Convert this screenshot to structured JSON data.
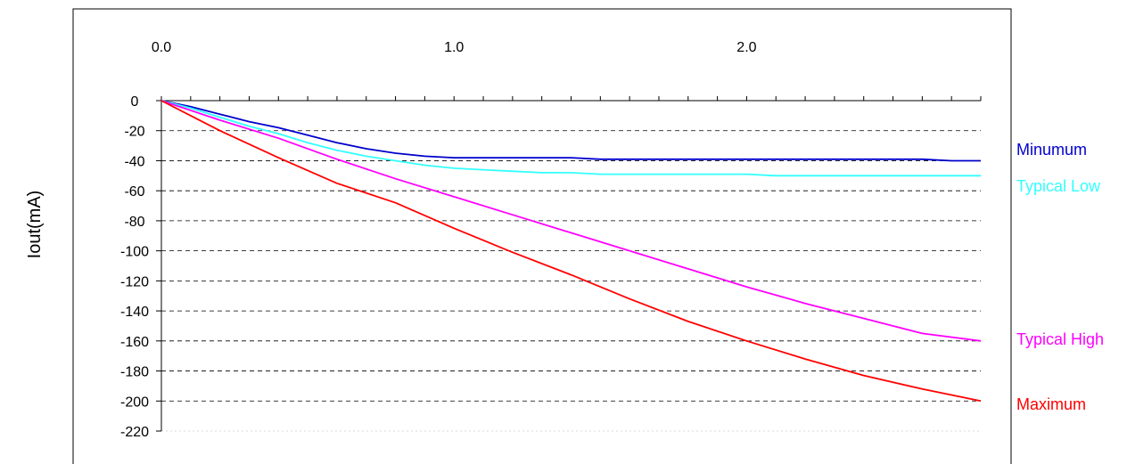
{
  "chart_data": {
    "type": "line",
    "title": "",
    "xlabel": "",
    "ylabel": "Iout(mA)",
    "x_ticks": [
      0.0,
      1.0,
      2.0
    ],
    "x_tick_labels": [
      "0.0",
      "1.0",
      "2.0"
    ],
    "x_minor_step": 0.1,
    "xlim": [
      0.0,
      2.8
    ],
    "ylim": [
      -220,
      0
    ],
    "y_ticks": [
      0,
      -20,
      -40,
      -60,
      -80,
      -100,
      -120,
      -140,
      -160,
      -180,
      -200,
      -220
    ],
    "y_tick_labels": [
      "0",
      "-20",
      "-40",
      "-60",
      "-80",
      "-100",
      "-120",
      "-140",
      "-160",
      "-180",
      "-200",
      "-220"
    ],
    "grid": "horizontal-dashed",
    "legend_placement": "right",
    "series": [
      {
        "name": "Minumum",
        "color": "#0000CC",
        "x": [
          0.0,
          0.1,
          0.2,
          0.3,
          0.4,
          0.5,
          0.6,
          0.7,
          0.8,
          0.9,
          1.0,
          1.2,
          1.4,
          1.5,
          1.6,
          1.8,
          2.0,
          2.2,
          2.4,
          2.6,
          2.7,
          2.8
        ],
        "y": [
          0,
          -4,
          -9,
          -14,
          -18,
          -23,
          -28,
          -32,
          -35,
          -37,
          -38,
          -38,
          -38,
          -39,
          -39,
          -39,
          -39,
          -39,
          -39,
          -39,
          -40,
          -40
        ]
      },
      {
        "name": "Typical Low",
        "color": "#33FFFF",
        "x": [
          0.0,
          0.1,
          0.2,
          0.3,
          0.4,
          0.5,
          0.6,
          0.7,
          0.8,
          0.9,
          1.0,
          1.1,
          1.2,
          1.3,
          1.4,
          1.5,
          1.7,
          1.9,
          2.0,
          2.1,
          2.3,
          2.5,
          2.8
        ],
        "y": [
          0,
          -5,
          -11,
          -17,
          -22,
          -28,
          -33,
          -37,
          -40,
          -43,
          -45,
          -46,
          -47,
          -48,
          -48,
          -49,
          -49,
          -49,
          -49,
          -50,
          -50,
          -50,
          -50
        ]
      },
      {
        "name": "Typical High",
        "color": "#FF00FF",
        "x": [
          0.0,
          0.2,
          0.4,
          0.6,
          0.8,
          1.0,
          1.2,
          1.4,
          1.6,
          1.8,
          2.0,
          2.2,
          2.4,
          2.6,
          2.8
        ],
        "y": [
          0,
          -13,
          -25,
          -39,
          -52,
          -64,
          -76,
          -88,
          -100,
          -112,
          -124,
          -135,
          -145,
          -155,
          -160
        ]
      },
      {
        "name": "Maximum",
        "color": "#FF0000",
        "x": [
          0.0,
          0.2,
          0.4,
          0.6,
          0.8,
          1.0,
          1.2,
          1.4,
          1.6,
          1.8,
          2.0,
          2.2,
          2.4,
          2.6,
          2.8
        ],
        "y": [
          0,
          -20,
          -38,
          -55,
          -68,
          -85,
          -101,
          -116,
          -132,
          -147,
          -160,
          -172,
          -183,
          -192,
          -200
        ]
      }
    ]
  }
}
